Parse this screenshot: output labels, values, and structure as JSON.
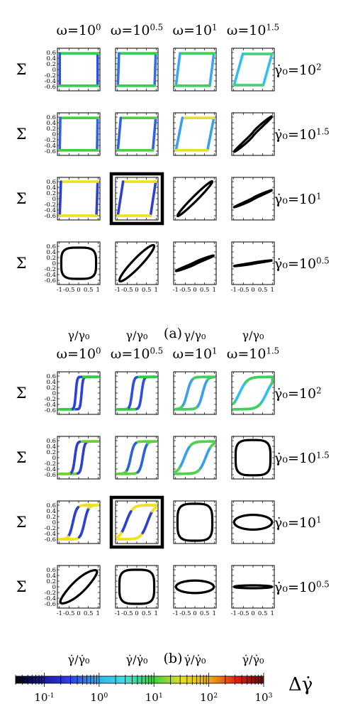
{
  "chart_data": [
    {
      "type": "line",
      "panel_label": "(a)",
      "ylabel": "Σ",
      "xlabel": "γ/γ₀",
      "xlim": [
        -1.1,
        1.1
      ],
      "ylim": [
        -0.75,
        0.75
      ],
      "x_ticks": [
        "-1",
        "-0.5",
        "0",
        "0.5",
        "1"
      ],
      "y_ticks": [
        "0.6",
        "0.4",
        "0.2",
        "0",
        "-0.2",
        "-0.4",
        "-0.6"
      ],
      "col_headers": [
        "ω=10^0",
        "ω=10^0.5",
        "ω=10^1",
        "ω=10^1.5"
      ],
      "row_headers": [
        "γ̇₀=10^2",
        "γ̇₀=10^1.5",
        "γ̇₀=10^1",
        "γ̇₀=10^0.5"
      ],
      "highlighted_panel": {
        "row": 2,
        "col": 1
      },
      "loops": [
        [
          {
            "shape": "rect",
            "slant": 0.0,
            "amp": 0.57,
            "colors": [
              "#30d050",
              "#2e50e0"
            ]
          },
          {
            "shape": "rect",
            "slant": 0.1,
            "amp": 0.57,
            "colors": [
              "#30d050",
              "#2e70ee"
            ]
          },
          {
            "shape": "rect",
            "slant": 0.35,
            "amp": 0.57,
            "colors": [
              "#40d060",
              "#3aa8ee"
            ]
          },
          {
            "shape": "rect",
            "slant": 0.75,
            "amp": 0.55,
            "colors": [
              "#48d080",
              "#30c0ee"
            ]
          }
        ],
        [
          {
            "shape": "rect",
            "slant": 0.05,
            "amp": 0.57,
            "colors": [
              "#40d040",
              "#2e60e8"
            ]
          },
          {
            "shape": "rect",
            "slant": 0.25,
            "amp": 0.57,
            "colors": [
              "#50d040",
              "#2e60e8"
            ]
          },
          {
            "shape": "rect",
            "slant": 0.55,
            "amp": 0.57,
            "colors": [
              "#e0e030",
              "#38a0e8"
            ]
          },
          {
            "shape": "line",
            "slant": 0.0,
            "amp": 0.62,
            "width": 0.07,
            "colors": [
              "#000000"
            ]
          }
        ],
        [
          {
            "shape": "rect",
            "slant": 0.1,
            "amp": 0.6,
            "colors": [
              "#f0e020",
              "#2e40d0"
            ]
          },
          {
            "shape": "rect",
            "slant": 0.45,
            "amp": 0.6,
            "colors": [
              "#f0e020",
              "#2e40d0"
            ]
          },
          {
            "shape": "ellipse",
            "slant": 0.0,
            "amp": 0.6,
            "width": 0.12,
            "colors": [
              "#000000"
            ]
          },
          {
            "shape": "line",
            "slant": 0.0,
            "amp": 0.3,
            "width": 0.03,
            "colors": [
              "#000000"
            ]
          }
        ],
        [
          {
            "shape": "superellipse",
            "slant": 0.0,
            "amp": 0.55,
            "width": 0.55,
            "colors": [
              "#000000"
            ]
          },
          {
            "shape": "ellipse",
            "slant": 0.0,
            "amp": 0.6,
            "width": 0.22,
            "colors": [
              "#000000"
            ]
          },
          {
            "shape": "line",
            "slant": 0.0,
            "amp": 0.27,
            "width": 0.04,
            "colors": [
              "#000000"
            ]
          },
          {
            "shape": "line",
            "slant": 0.0,
            "amp": 0.1,
            "width": 0.02,
            "colors": [
              "#000000"
            ]
          }
        ]
      ]
    },
    {
      "type": "line",
      "panel_label": "(b)",
      "ylabel": "Σ",
      "xlabel": "γ̇/γ̇₀",
      "xlim": [
        -1.1,
        1.1
      ],
      "ylim": [
        -0.75,
        0.75
      ],
      "x_ticks": [
        "-1",
        "-0.5",
        "0",
        "0.5",
        "1"
      ],
      "y_ticks": [
        "0.6",
        "0.4",
        "0.2",
        "0",
        "-0.2",
        "-0.4",
        "-0.6"
      ],
      "col_headers": [
        "ω=10^0",
        "ω=10^0.5",
        "ω=10^1",
        "ω=10^1.5"
      ],
      "row_headers": [
        "γ̇₀=10^2",
        "γ̇₀=10^1.5",
        "γ̇₀=10^1",
        "γ̇₀=10^0.5"
      ],
      "highlighted_panel": {
        "row": 2,
        "col": 1
      },
      "loops": [
        [
          {
            "shape": "sigmoid",
            "offset": 0.15,
            "steep": 28,
            "amp": 0.57,
            "colors": [
              "#30d040",
              "#2e40e0"
            ]
          },
          {
            "shape": "sigmoid",
            "offset": 0.25,
            "steep": 18,
            "amp": 0.57,
            "colors": [
              "#30d040",
              "#2e50e0"
            ]
          },
          {
            "shape": "sigmoid",
            "offset": 0.4,
            "steep": 9,
            "amp": 0.57,
            "colors": [
              "#40d060",
              "#38a0ee"
            ]
          },
          {
            "shape": "sigmoid",
            "offset": 0.7,
            "steep": 5,
            "amp": 0.57,
            "colors": [
              "#40d060",
              "#30c0ee"
            ]
          }
        ],
        [
          {
            "shape": "sigmoid",
            "offset": 0.2,
            "steep": 18,
            "amp": 0.57,
            "colors": [
              "#70d030",
              "#2e40d0"
            ]
          },
          {
            "shape": "sigmoid",
            "offset": 0.32,
            "steep": 11,
            "amp": 0.57,
            "colors": [
              "#60d040",
              "#2e60e0"
            ]
          },
          {
            "shape": "sigmoid",
            "offset": 0.55,
            "steep": 6,
            "amp": 0.57,
            "colors": [
              "#50d050",
              "#38a0ee"
            ]
          },
          {
            "shape": "superellipse",
            "slant": 0.0,
            "amp": 0.62,
            "width": 0.78,
            "colors": [
              "#000000"
            ]
          }
        ],
        [
          {
            "shape": "sigmoid",
            "offset": 0.3,
            "steep": 10,
            "amp": 0.6,
            "colors": [
              "#f0e020",
              "#2e40d0"
            ]
          },
          {
            "shape": "sigmoid",
            "offset": 0.55,
            "steep": 6,
            "amp": 0.6,
            "colors": [
              "#f0e020",
              "#2e40d0"
            ]
          },
          {
            "shape": "superellipse",
            "slant": 0.0,
            "amp": 0.65,
            "width": 0.78,
            "colors": [
              "#000000"
            ]
          },
          {
            "shape": "ellipse",
            "slant": 0.0,
            "amp": 0.26,
            "width": 0.75,
            "colors": [
              "#000000"
            ],
            "axis": "x"
          }
        ],
        [
          {
            "shape": "lens",
            "slant": 0.0,
            "amp": 0.62,
            "width": 0.5,
            "colors": [
              "#000000"
            ]
          },
          {
            "shape": "superellipse",
            "slant": 0.0,
            "amp": 0.6,
            "width": 0.65,
            "colors": [
              "#000000"
            ]
          },
          {
            "shape": "ellipse",
            "slant": 0.0,
            "amp": 0.22,
            "width": 0.75,
            "colors": [
              "#000000"
            ],
            "axis": "x"
          },
          {
            "shape": "ellipse",
            "slant": 0.0,
            "amp": 0.05,
            "width": 1.0,
            "colors": [
              "#000000"
            ],
            "axis": "x"
          }
        ]
      ]
    }
  ],
  "colorbar": {
    "title": "Δγ̇",
    "scale": "log",
    "range": [
      0.03,
      1000
    ],
    "tick_labels": [
      "10^-1",
      "10^0",
      "10^1",
      "10^2",
      "10^3"
    ],
    "colors": [
      "#000000",
      "#1a1aa0",
      "#2e40e8",
      "#30b0f0",
      "#40e0e0",
      "#40d040",
      "#e0e020",
      "#f0b010",
      "#e02010",
      "#800000"
    ]
  }
}
